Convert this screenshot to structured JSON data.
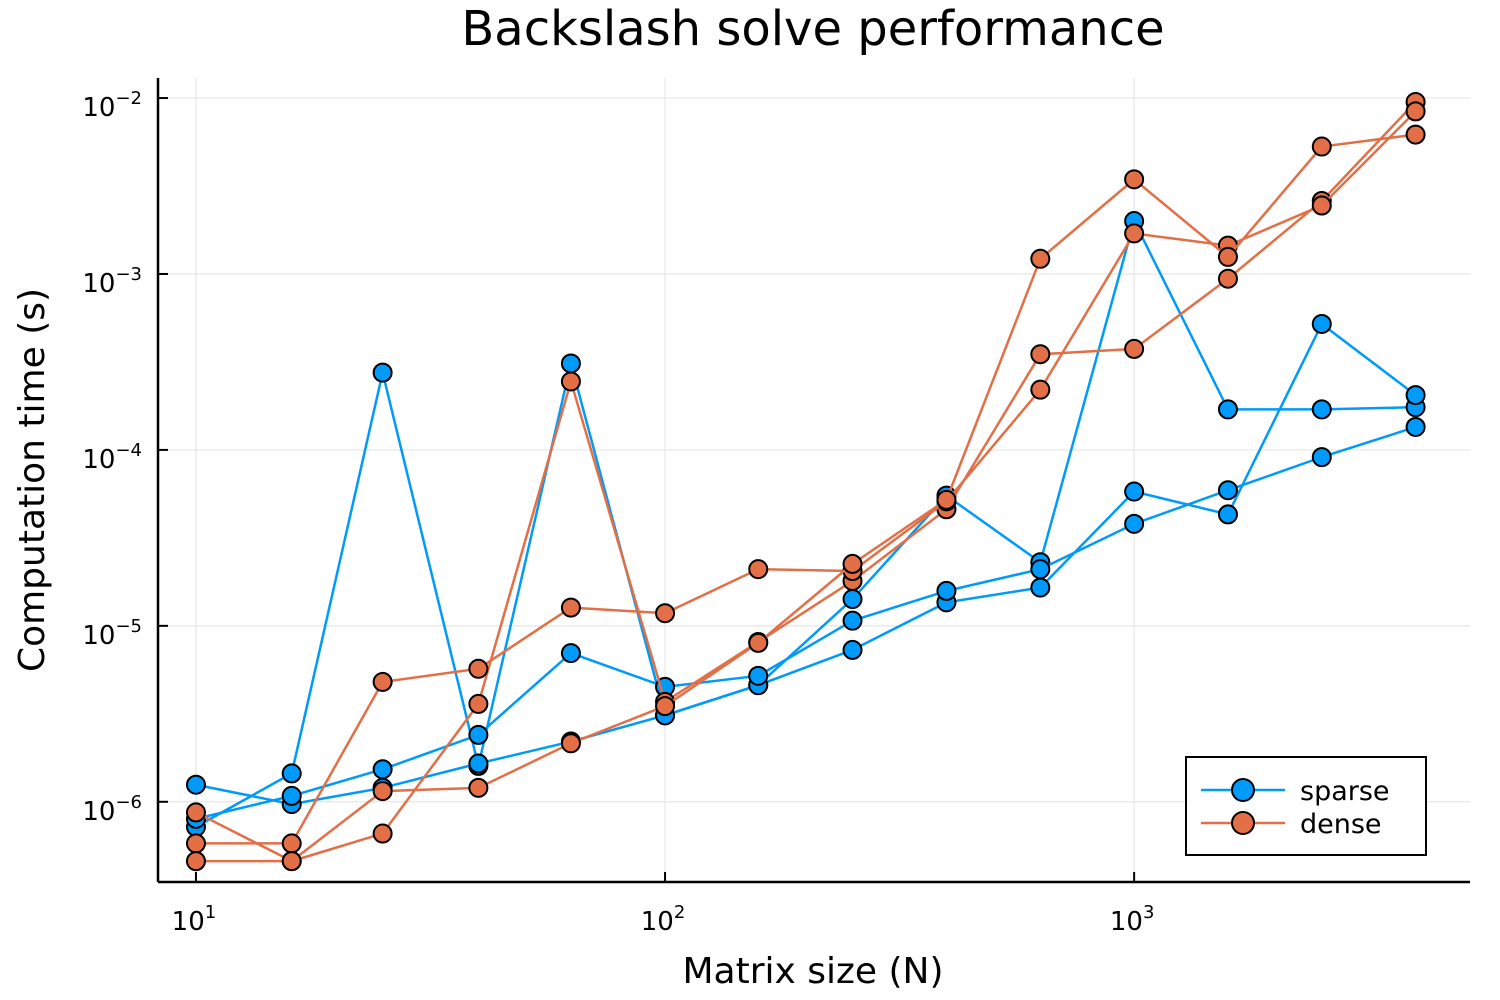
{
  "chart_data": {
    "type": "scatter",
    "title": "Backslash solve performance",
    "xlabel": "Matrix size (N)",
    "ylabel": "Computation time (s)",
    "xscale": "log",
    "yscale": "log",
    "xlim": [
      8.3,
      5200
    ],
    "ylim": [
      3.5e-07,
      0.013
    ],
    "grid": true,
    "legend_position": "bottom-right",
    "x_ticks": [
      {
        "value": 10,
        "base": "10",
        "exp": "1"
      },
      {
        "value": 100,
        "base": "10",
        "exp": "2"
      },
      {
        "value": 1000,
        "base": "10",
        "exp": "3"
      }
    ],
    "y_ticks": [
      {
        "value": 1e-06,
        "base": "10",
        "exp": "−6"
      },
      {
        "value": 1e-05,
        "base": "10",
        "exp": "−5"
      },
      {
        "value": 0.0001,
        "base": "10",
        "exp": "−4"
      },
      {
        "value": 0.001,
        "base": "10",
        "exp": "−3"
      },
      {
        "value": 0.01,
        "base": "10",
        "exp": "−2"
      }
    ],
    "x": [
      10,
      16,
      25,
      40,
      63,
      100,
      158,
      251,
      398,
      631,
      1000,
      1585,
      2512,
      3981
    ],
    "legend": [
      {
        "name": "sparse",
        "color": "#009AFA"
      },
      {
        "name": "dense",
        "color": "#E26F46"
      }
    ],
    "series": [
      {
        "group": "sparse",
        "color": "#009AFA",
        "values": [
          7.2e-07,
          1.45e-06,
          0.000275,
          1.6e-06,
          0.00031,
          3.1e-06,
          4.6e-06,
          1.42e-05,
          5.5e-05,
          2.3e-05,
          0.002,
          0.00017,
          0.00017,
          0.000175
        ]
      },
      {
        "group": "sparse",
        "color": "#009AFA",
        "values": [
          1.25e-06,
          9.7e-07,
          1.2e-06,
          1.65e-06,
          2.2e-06,
          3.1e-06,
          4.6e-06,
          7.3e-06,
          1.36e-05,
          1.65e-05,
          5.8e-05,
          4.3e-05,
          0.00052,
          0.000205
        ]
      },
      {
        "group": "sparse",
        "color": "#009AFA",
        "values": [
          8e-07,
          1.08e-06,
          1.53e-06,
          2.4e-06,
          7e-06,
          4.5e-06,
          5.2e-06,
          1.07e-05,
          1.58e-05,
          2.1e-05,
          3.8e-05,
          5.9e-05,
          9.1e-05,
          0.000135
        ]
      },
      {
        "group": "dense",
        "color": "#E26F46",
        "values": [
          8.7e-07,
          4.6e-07,
          6.6e-07,
          3.6e-06,
          0.000245,
          3.7e-06,
          8.1e-06,
          1.8e-05,
          4.6e-05,
          0.00035,
          0.000375,
          0.00094,
          0.0026,
          0.0095
        ]
      },
      {
        "group": "dense",
        "color": "#E26F46",
        "values": [
          5.8e-07,
          5.8e-07,
          4.8e-06,
          5.7e-06,
          1.27e-05,
          1.18e-05,
          2.1e-05,
          2.05e-05,
          5.1e-05,
          0.00022,
          0.0017,
          0.00145,
          0.00245,
          0.0084
        ]
      },
      {
        "group": "dense",
        "color": "#E26F46",
        "values": [
          4.6e-07,
          4.6e-07,
          1.15e-06,
          1.2e-06,
          2.15e-06,
          3.5e-06,
          8e-06,
          2.25e-05,
          5.2e-05,
          0.00122,
          0.00345,
          0.00125,
          0.0053,
          0.0062
        ]
      }
    ]
  }
}
